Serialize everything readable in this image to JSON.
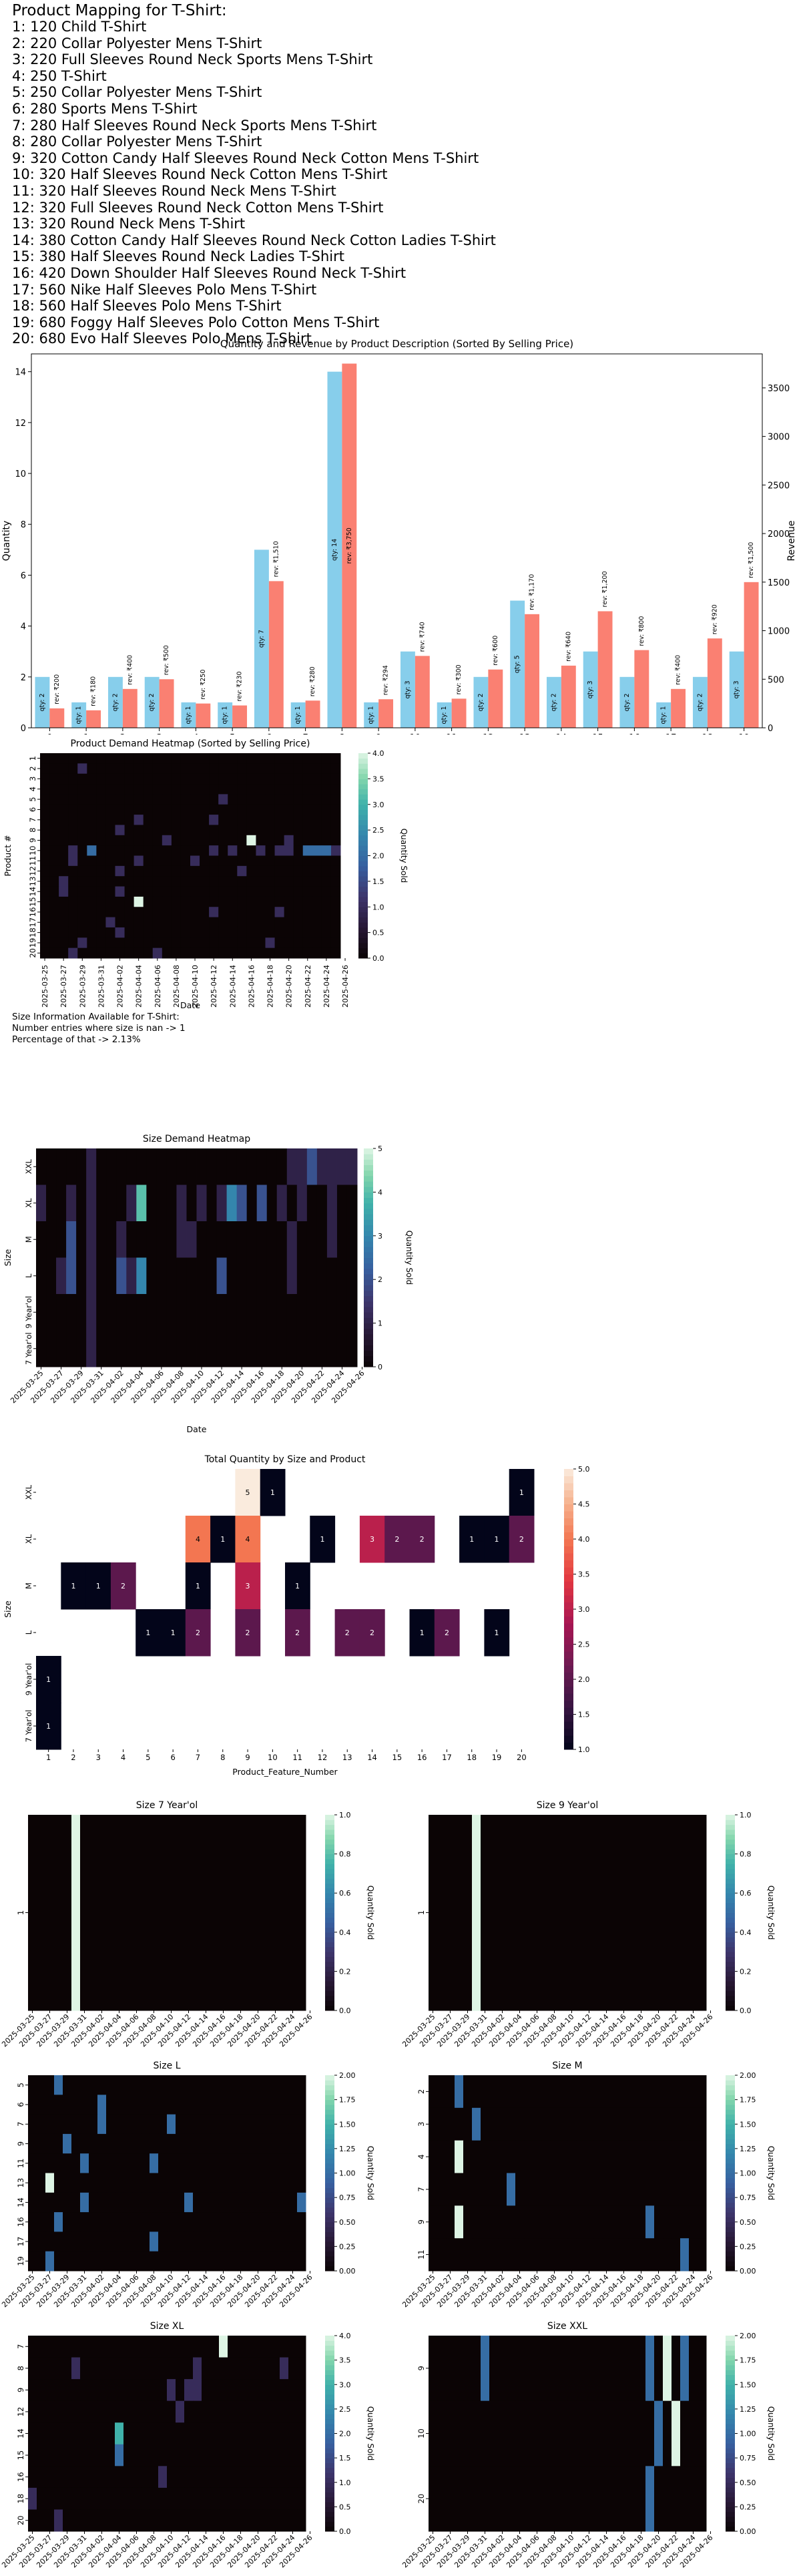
{
  "mapping": {
    "heading": "Product Mapping for T-Shirt:",
    "items": [
      "1: 120 Child T-Shirt",
      "2: 220 Collar Polyester Mens T-Shirt",
      "3: 220 Full Sleeves Round Neck Sports Mens T-Shirt",
      "4: 250 T-Shirt",
      "5: 250 Collar Polyester Mens T-Shirt",
      "6: 280 Sports Mens T-Shirt",
      "7: 280 Half Sleeves Round Neck Sports Mens T-Shirt",
      "8: 280 Collar Polyester Mens T-Shirt",
      "9: 320 Cotton Candy Half Sleeves Round Neck Cotton Mens T-Shirt",
      "10: 320 Half Sleeves Round Neck Cotton Mens T-Shirt",
      "11: 320 Half Sleeves Round Neck Mens T-Shirt",
      "12: 320 Full Sleeves Round Neck Cotton Mens T-Shirt",
      "13: 320 Round Neck Mens T-Shirt",
      "14: 380 Cotton Candy Half Sleeves Round Neck Cotton Ladies T-Shirt",
      "15: 380 Half Sleeves Round Neck Ladies T-Shirt",
      "16: 420 Down Shoulder Half Sleeves Round Neck T-Shirt",
      "17: 560 Nike Half Sleeves Polo Mens T-Shirt",
      "18: 560 Half Sleeves Polo Mens T-Shirt",
      "19: 680 Foggy Half Sleeves Polo Cotton Mens T-Shirt",
      "20: 680 Evo Half Sleeves Polo Mens T-Shirt"
    ]
  },
  "size_info": {
    "line1": "Size Information Available for T-Shirt:",
    "line2": "Number entries where size is nan -> 1",
    "line3": "Percentage of that -> 2.13%"
  },
  "dates": [
    "2025-03-25",
    "2025-03-27",
    "2025-03-29",
    "2025-03-31",
    "2025-04-02",
    "2025-04-04",
    "2025-04-06",
    "2025-04-08",
    "2025-04-10",
    "2025-04-12",
    "2025-04-14",
    "2025-04-16",
    "2025-04-18",
    "2025-04-20",
    "2025-04-22",
    "2025-04-24",
    "2025-04-26"
  ],
  "colors": {
    "qty_bar": "#87ceeb",
    "rev_bar": "#fa8072"
  },
  "chart_data": [
    {
      "type": "bar",
      "title": "Quantity and Revenue by Product Description (Sorted By Selling Price)",
      "ylabel": "Quantity",
      "ylabel_right": "Revenue",
      "categories": [
        "0",
        "1",
        "2",
        "3",
        "4",
        "5",
        "6",
        "7",
        "8",
        "9",
        "10",
        "11",
        "12",
        "13",
        "14",
        "15",
        "16",
        "17",
        "18",
        "19"
      ],
      "ylim": [
        0,
        14.7
      ],
      "ylim_right": [
        0,
        3850
      ],
      "yticks": [
        0,
        2,
        4,
        6,
        8,
        10,
        12,
        14
      ],
      "yticks_right": [
        0,
        500,
        1000,
        1500,
        2000,
        2500,
        3000,
        3500
      ],
      "series": [
        {
          "axis": "left",
          "values": [
            2,
            1,
            2,
            2,
            1,
            1,
            7,
            1,
            14,
            1,
            3,
            1,
            2,
            5,
            2,
            3,
            2,
            1,
            2,
            3
          ],
          "labels": [
            "qty: 2",
            "qty: 1",
            "qty: 2",
            "qty: 2",
            "qty: 1",
            "qty: 1",
            "qty: 7",
            "qty: 1",
            "qty: 14",
            "qty: 1",
            "qty: 3",
            "qty: 1",
            "qty: 2",
            "qty: 5",
            "qty: 2",
            "qty: 3",
            "qty: 2",
            "qty: 1",
            "qty: 2",
            "qty: 3"
          ]
        },
        {
          "axis": "right",
          "values": [
            200,
            180,
            400,
            500,
            250,
            230,
            1510,
            280,
            3750,
            294,
            740,
            300,
            600,
            1170,
            640,
            1200,
            800,
            400,
            920,
            1500
          ],
          "labels": [
            "rev: ₹200",
            "rev: ₹180",
            "rev: ₹400",
            "rev: ₹500",
            "rev: ₹250",
            "rev: ₹230",
            "rev: ₹1,510",
            "rev: ₹280",
            "rev: ₹3,750",
            "rev: ₹294",
            "rev: ₹740",
            "rev: ₹300",
            "rev: ₹600",
            "rev: ₹1,170",
            "rev: ₹640",
            "rev: ₹1,200",
            "rev: ₹800",
            "rev: ₹400",
            "rev: ₹920",
            "rev: ₹1,500"
          ]
        }
      ]
    },
    {
      "type": "heatmap",
      "title": "Product Demand Heatmap (Sorted by Selling Price)",
      "xlabel": "Date",
      "ylabel": "Product #",
      "colorbar_label": "Quantity Sold",
      "colormap": "mako",
      "vmax": 4,
      "colorbar_ticks": [
        "0.0",
        "0.5",
        "1.0",
        "1.5",
        "2.0",
        "2.5",
        "3.0",
        "3.5",
        "4.0"
      ],
      "rows": [
        "1",
        "2",
        "3",
        "4",
        "5",
        "6",
        "7",
        "8",
        "9",
        "10",
        "11",
        "12",
        "13",
        "14",
        "15",
        "16",
        "17",
        "18",
        "19",
        "20"
      ],
      "columns": "dates",
      "n_columns": 32,
      "cells": [
        [
          1,
          4,
          1
        ],
        [
          4,
          19,
          1
        ],
        [
          6,
          10,
          1
        ],
        [
          6,
          18,
          1
        ],
        [
          7,
          8,
          1
        ],
        [
          8,
          13,
          1
        ],
        [
          8,
          26,
          1
        ],
        [
          9,
          3,
          1
        ],
        [
          9,
          5,
          2
        ],
        [
          9,
          18,
          1
        ],
        [
          9,
          20,
          1
        ],
        [
          9,
          23,
          1
        ],
        [
          9,
          25,
          1
        ],
        [
          9,
          26,
          1
        ],
        [
          9,
          28,
          2
        ],
        [
          9,
          29,
          2
        ],
        [
          9,
          30,
          2
        ],
        [
          9,
          31,
          1
        ],
        [
          10,
          3,
          1
        ],
        [
          10,
          10,
          1
        ],
        [
          10,
          16,
          1
        ],
        [
          11,
          8,
          1
        ],
        [
          11,
          21,
          1
        ],
        [
          12,
          2,
          1
        ],
        [
          13,
          2,
          1
        ],
        [
          13,
          8,
          1
        ],
        [
          14,
          10,
          4
        ],
        [
          15,
          18,
          1
        ],
        [
          15,
          25,
          1
        ],
        [
          16,
          7,
          1
        ],
        [
          17,
          8,
          1
        ],
        [
          18,
          4,
          1
        ],
        [
          18,
          24,
          1
        ],
        [
          19,
          3,
          1
        ],
        [
          19,
          12,
          1
        ]
      ],
      "highlight": [
        8,
        22,
        4
      ]
    },
    {
      "type": "heatmap",
      "title": "Size Demand Heatmap",
      "xlabel": "Date",
      "ylabel": "Size",
      "colorbar_label": "Quantity Sold",
      "colormap": "mako",
      "vmax": 5,
      "colorbar_ticks": [
        "0",
        "1",
        "2",
        "3",
        "4",
        "5"
      ],
      "rows": [
        "XXL",
        "XL",
        "M",
        "L",
        "9 Year'ol",
        "7 Year'ol"
      ],
      "columns": "dates",
      "n_columns": 32,
      "cells": [
        [
          0,
          5,
          1
        ],
        [
          0,
          25,
          1
        ],
        [
          0,
          26,
          1
        ],
        [
          0,
          27,
          2
        ],
        [
          0,
          28,
          1
        ],
        [
          0,
          29,
          1
        ],
        [
          0,
          30,
          1
        ],
        [
          0,
          31,
          1
        ],
        [
          1,
          0,
          1
        ],
        [
          1,
          3,
          1
        ],
        [
          1,
          5,
          1
        ],
        [
          1,
          9,
          1
        ],
        [
          1,
          10,
          4
        ],
        [
          1,
          14,
          1
        ],
        [
          1,
          16,
          1
        ],
        [
          1,
          18,
          1
        ],
        [
          1,
          19,
          3
        ],
        [
          1,
          20,
          2
        ],
        [
          1,
          22,
          2
        ],
        [
          1,
          24,
          1
        ],
        [
          1,
          26,
          1
        ],
        [
          1,
          29,
          1
        ],
        [
          2,
          3,
          2
        ],
        [
          2,
          5,
          1
        ],
        [
          2,
          8,
          1
        ],
        [
          2,
          14,
          1
        ],
        [
          2,
          15,
          1
        ],
        [
          2,
          25,
          1
        ],
        [
          2,
          29,
          1
        ],
        [
          3,
          2,
          1
        ],
        [
          3,
          3,
          2
        ],
        [
          3,
          5,
          1
        ],
        [
          3,
          8,
          2
        ],
        [
          3,
          9,
          1
        ],
        [
          3,
          10,
          3
        ],
        [
          3,
          18,
          2
        ],
        [
          3,
          25,
          1
        ],
        [
          4,
          5,
          1
        ],
        [
          5,
          5,
          1
        ]
      ]
    },
    {
      "type": "heatmap",
      "title": "Total Quantity by Size and Product",
      "xlabel": "Product_Feature_Number",
      "ylabel": "Size",
      "colorbar_label": "",
      "colormap": "rocket",
      "vmin": 1,
      "vmax": 5,
      "colorbar_ticks": [
        "1.0",
        "1.5",
        "2.0",
        "2.5",
        "3.0",
        "3.5",
        "4.0",
        "4.5",
        "5.0"
      ],
      "rows": [
        "XXL",
        "XL",
        "M",
        "L",
        "9 Year'ol",
        "7 Year'ol"
      ],
      "columns": [
        "1",
        "2",
        "3",
        "4",
        "5",
        "6",
        "7",
        "8",
        "9",
        "10",
        "11",
        "12",
        "13",
        "14",
        "15",
        "16",
        "17",
        "18",
        "19",
        "20"
      ],
      "cells": [
        [
          0,
          8,
          5
        ],
        [
          0,
          9,
          1
        ],
        [
          0,
          19,
          1
        ],
        [
          1,
          6,
          4
        ],
        [
          1,
          7,
          1
        ],
        [
          1,
          8,
          4
        ],
        [
          1,
          11,
          1
        ],
        [
          1,
          13,
          3
        ],
        [
          1,
          14,
          2
        ],
        [
          1,
          15,
          2
        ],
        [
          1,
          17,
          1
        ],
        [
          1,
          18,
          1
        ],
        [
          1,
          19,
          2
        ],
        [
          2,
          1,
          1
        ],
        [
          2,
          2,
          1
        ],
        [
          2,
          3,
          2
        ],
        [
          2,
          6,
          1
        ],
        [
          2,
          8,
          3
        ],
        [
          2,
          10,
          1
        ],
        [
          3,
          4,
          1
        ],
        [
          3,
          5,
          1
        ],
        [
          3,
          6,
          2
        ],
        [
          3,
          8,
          2
        ],
        [
          3,
          10,
          2
        ],
        [
          3,
          12,
          2
        ],
        [
          3,
          13,
          2
        ],
        [
          3,
          15,
          1
        ],
        [
          3,
          16,
          2
        ],
        [
          3,
          18,
          1
        ],
        [
          4,
          0,
          1
        ],
        [
          5,
          0,
          1
        ]
      ]
    },
    {
      "type": "heatmap",
      "title": "Size 7 Year'ol",
      "colorbar_label": "Quantity Sold",
      "colormap": "mako",
      "vmax": 1,
      "colorbar_ticks": [
        "0.0",
        "0.2",
        "0.4",
        "0.6",
        "0.8",
        "1.0"
      ],
      "rows": [
        "1"
      ],
      "columns": "dates",
      "n_columns": 32,
      "cells": [
        [
          0,
          5,
          1
        ]
      ]
    },
    {
      "type": "heatmap",
      "title": "Size 9 Year'ol",
      "colorbar_label": "Quantity Sold",
      "colormap": "mako",
      "vmax": 1,
      "colorbar_ticks": [
        "0.0",
        "0.2",
        "0.4",
        "0.6",
        "0.8",
        "1.0"
      ],
      "rows": [
        "1"
      ],
      "columns": "dates",
      "n_columns": 32,
      "cells": [
        [
          0,
          5,
          1
        ]
      ]
    },
    {
      "type": "heatmap",
      "title": "Size L",
      "colorbar_label": "Quantity Sold",
      "colormap": "mako",
      "vmax": 2,
      "colorbar_ticks": [
        "0.00",
        "0.25",
        "0.50",
        "0.75",
        "1.00",
        "1.25",
        "1.50",
        "1.75",
        "2.00"
      ],
      "rows": [
        "5",
        "6",
        "7",
        "9",
        "11",
        "13",
        "14",
        "16",
        "17",
        "19"
      ],
      "columns": "dates",
      "n_columns": 32,
      "cells": [
        [
          0,
          3,
          1
        ],
        [
          1,
          8,
          1
        ],
        [
          2,
          8,
          1
        ],
        [
          2,
          16,
          1
        ],
        [
          3,
          4,
          1
        ],
        [
          4,
          6,
          1
        ],
        [
          4,
          14,
          1
        ],
        [
          5,
          2,
          2
        ],
        [
          6,
          6,
          1
        ],
        [
          6,
          18,
          1
        ],
        [
          6,
          31,
          1
        ],
        [
          7,
          3,
          1
        ],
        [
          8,
          14,
          1
        ],
        [
          9,
          2,
          1
        ]
      ]
    },
    {
      "type": "heatmap",
      "title": "Size M",
      "colorbar_label": "Quantity Sold",
      "colormap": "mako",
      "vmax": 2,
      "colorbar_ticks": [
        "0.00",
        "0.25",
        "0.50",
        "0.75",
        "1.00",
        "1.25",
        "1.50",
        "1.75",
        "2.00"
      ],
      "rows": [
        "2",
        "3",
        "4",
        "7",
        "9",
        "11"
      ],
      "columns": "dates",
      "n_columns": 32,
      "cells": [
        [
          0,
          3,
          1
        ],
        [
          1,
          5,
          1
        ],
        [
          2,
          3,
          2
        ],
        [
          3,
          9,
          1
        ],
        [
          4,
          3,
          2
        ],
        [
          4,
          25,
          1
        ],
        [
          5,
          29,
          1
        ]
      ]
    },
    {
      "type": "heatmap",
      "title": "Size XL",
      "colorbar_label": "Quantity Sold",
      "colormap": "mako",
      "vmax": 4,
      "colorbar_ticks": [
        "0.0",
        "0.5",
        "1.0",
        "1.5",
        "2.0",
        "2.5",
        "3.0",
        "3.5",
        "4.0"
      ],
      "rows": [
        "7",
        "8",
        "9",
        "12",
        "14",
        "15",
        "16",
        "18",
        "20"
      ],
      "columns": "dates",
      "n_columns": 32,
      "cells": [
        [
          0,
          22,
          4
        ],
        [
          1,
          5,
          1
        ],
        [
          1,
          19,
          1
        ],
        [
          1,
          29,
          1
        ],
        [
          2,
          16,
          1
        ],
        [
          2,
          18,
          1
        ],
        [
          2,
          19,
          1
        ],
        [
          3,
          17,
          1
        ],
        [
          4,
          10,
          3
        ],
        [
          5,
          10,
          2
        ],
        [
          6,
          15,
          1
        ],
        [
          7,
          0,
          1
        ],
        [
          8,
          3,
          1
        ]
      ]
    },
    {
      "type": "heatmap",
      "title": "Size XXL",
      "colorbar_label": "Quantity Sold",
      "colormap": "mako",
      "vmax": 2,
      "colorbar_ticks": [
        "0.00",
        "0.25",
        "0.50",
        "0.75",
        "1.00",
        "1.25",
        "1.50",
        "1.75",
        "2.00"
      ],
      "rows": [
        "9",
        "10",
        "20"
      ],
      "columns": "dates",
      "n_columns": 32,
      "cells": [
        [
          0,
          6,
          1
        ],
        [
          0,
          25,
          1
        ],
        [
          0,
          27,
          2
        ],
        [
          0,
          29,
          1
        ],
        [
          1,
          26,
          1
        ],
        [
          1,
          28,
          2
        ],
        [
          2,
          25,
          1
        ]
      ]
    }
  ]
}
